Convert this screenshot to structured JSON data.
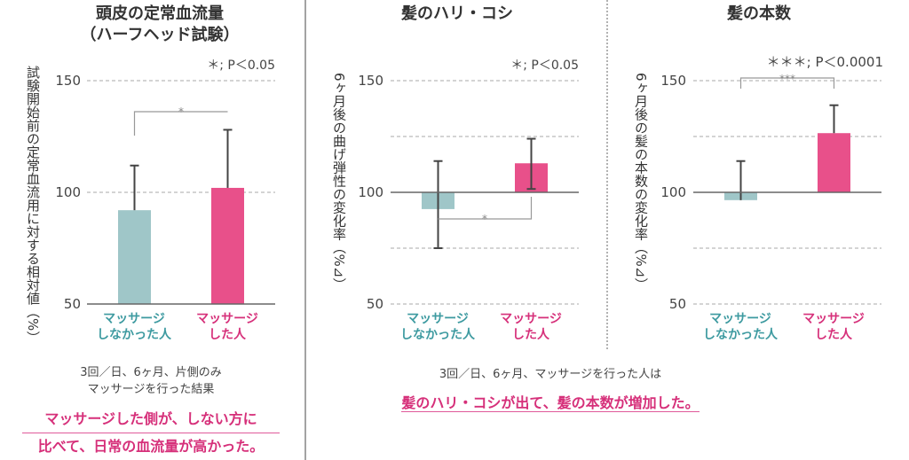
{
  "colors": {
    "control": "#9fc6c8",
    "massage": "#e8508a",
    "control_text": "#3d9aa0",
    "massage_text": "#d6307a",
    "conclusion": "#d6307a"
  },
  "chart_data": [
    {
      "type": "bar",
      "title": "頭皮の定常血流量\n（ハーフヘッド試験）",
      "title_lines": [
        "頭皮の定常血流量",
        "（ハーフヘッド試験）"
      ],
      "ylabel": "試験開始前の定常血流用に対する相対値（%）",
      "ylim": [
        50,
        150
      ],
      "yticks": [
        50,
        100,
        150
      ],
      "baseline": 50,
      "categories": [
        "マッサージ\nしなかった人",
        "マッサージ\nした人"
      ],
      "category_lines": [
        [
          "マッサージ",
          "しなかった人"
        ],
        [
          "マッサージ",
          "した人"
        ]
      ],
      "values": [
        92,
        102
      ],
      "error_upper": [
        112,
        128
      ],
      "error_lower": [
        null,
        null
      ],
      "significance": "*",
      "legend_note": "＊; P＜0.05",
      "grid": "dashed at 100, 150"
    },
    {
      "type": "bar",
      "title": "髪のハリ・コシ",
      "title_lines": [
        "髪のハリ・コシ"
      ],
      "ylabel": "6ヶ月後の曲げ弾性の変化率（%⊿）",
      "ylim": [
        50,
        150
      ],
      "yticks": [
        50,
        100,
        150
      ],
      "baseline": 100,
      "categories": [
        "マッサージ\nしなかった人",
        "マッサージ\nした人"
      ],
      "category_lines": [
        [
          "マッサージ",
          "しなかった人"
        ],
        [
          "マッサージ",
          "した人"
        ]
      ],
      "values": [
        92.5,
        113
      ],
      "error_upper": [
        114,
        124
      ],
      "error_lower": [
        75,
        101.5
      ],
      "significance": "*",
      "legend_note": "＊; P＜0.05",
      "grid": "dashed at 50, 75, 125, 150"
    },
    {
      "type": "bar",
      "title": "髪の本数",
      "title_lines": [
        "髪の本数"
      ],
      "ylabel": "6ヶ月後の髪の本数の変化率（%⊿）",
      "ylim": [
        50,
        150
      ],
      "yticks": [
        50,
        100,
        150
      ],
      "baseline": 100,
      "categories": [
        "マッサージ\nしなかった人",
        "マッサージ\nした人"
      ],
      "category_lines": [
        [
          "マッサージ",
          "しなかった人"
        ],
        [
          "マッサージ",
          "した人"
        ]
      ],
      "values": [
        96.5,
        126.5
      ],
      "error_upper": [
        114,
        139
      ],
      "error_lower": [
        null,
        null
      ],
      "significance": "***",
      "legend_note": "＊＊＊; P＜0.0001",
      "grid": "dashed at 50, 75, 125, 150"
    }
  ],
  "notes": {
    "left": [
      "3回／日、6ヶ月、片側のみ",
      "マッサージを行った結果"
    ],
    "left_conclusion": [
      "マッサージした側が、しない方に",
      "比べて、日常の血流量が高かった。"
    ],
    "right": "3回／日、6ヶ月、マッサージを行った人は",
    "right_conclusion": "髪のハリ・コシが出て、髪の本数が増加した。"
  }
}
